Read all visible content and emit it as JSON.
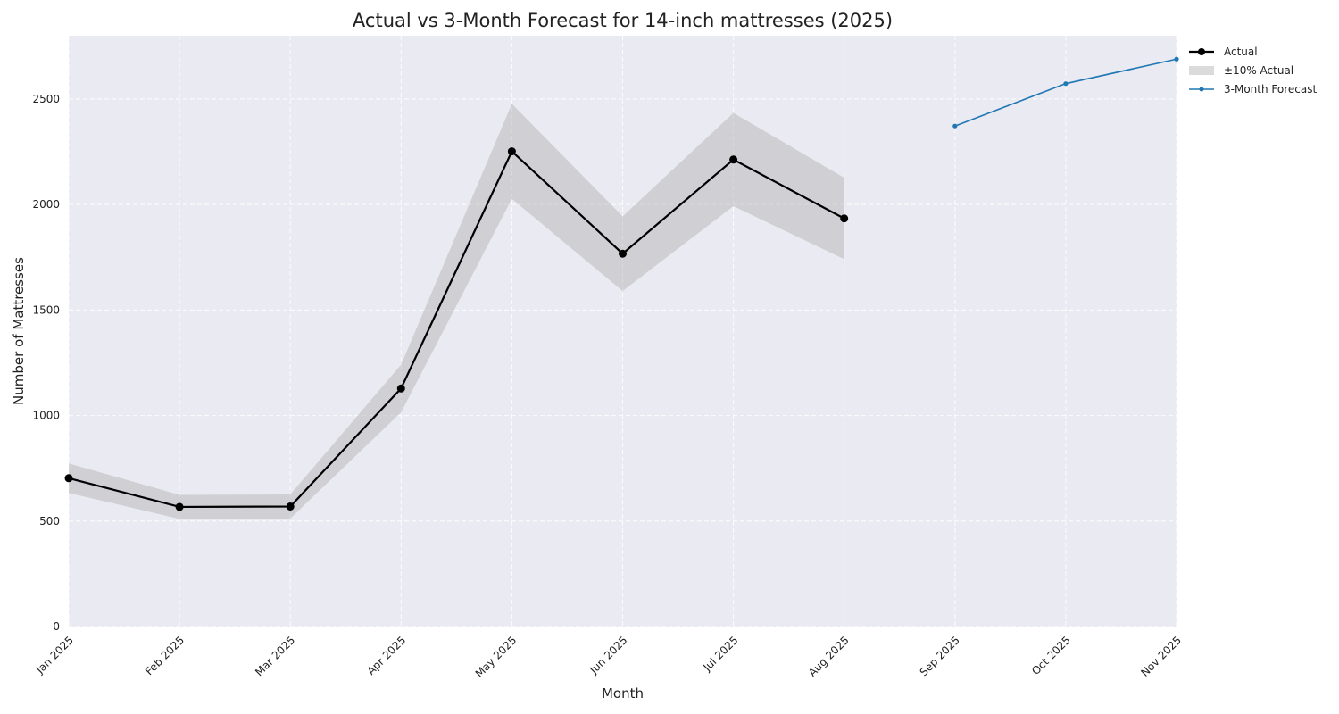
{
  "chart_data": {
    "type": "line",
    "title": "Actual vs 3-Month Forecast for 14-inch mattresses (2025)",
    "xlabel": "Month",
    "ylabel": "Number of Mattresses",
    "x": [
      "Jan 2025",
      "Feb 2025",
      "Mar 2025",
      "Apr 2025",
      "May 2025",
      "Jun 2025",
      "Jul 2025",
      "Aug 2025",
      "Sep 2025",
      "Oct 2025",
      "Nov 2025"
    ],
    "ylim": [
      0,
      2800
    ],
    "yticks": [
      0,
      500,
      1000,
      1500,
      2000,
      2500
    ],
    "grid": true,
    "legend_position": "outside-top-right",
    "series": [
      {
        "name": "Actual",
        "color": "#000000",
        "x": [
          "Jan 2025",
          "Feb 2025",
          "Mar 2025",
          "Apr 2025",
          "May 2025",
          "Jun 2025",
          "Jul 2025",
          "Aug 2025"
        ],
        "values": [
          703,
          567,
          569,
          1128,
          2252,
          1767,
          2213,
          1934
        ]
      },
      {
        "name": "±10% Actual",
        "type": "band",
        "color": "#bbbbbb",
        "x": [
          "Jan 2025",
          "Feb 2025",
          "Mar 2025",
          "Apr 2025",
          "May 2025",
          "Jun 2025",
          "Jul 2025",
          "Aug 2025"
        ],
        "lower": [
          633,
          510,
          512,
          1015,
          2027,
          1590,
          1992,
          1741
        ],
        "upper": [
          773,
          624,
          626,
          1241,
          2477,
          1944,
          2434,
          2127
        ]
      },
      {
        "name": "3-Month Forecast",
        "color": "#1f77b4",
        "x": [
          "Sep 2025",
          "Oct 2025",
          "Nov 2025"
        ],
        "values": [
          2372,
          2573,
          2689
        ]
      }
    ]
  }
}
